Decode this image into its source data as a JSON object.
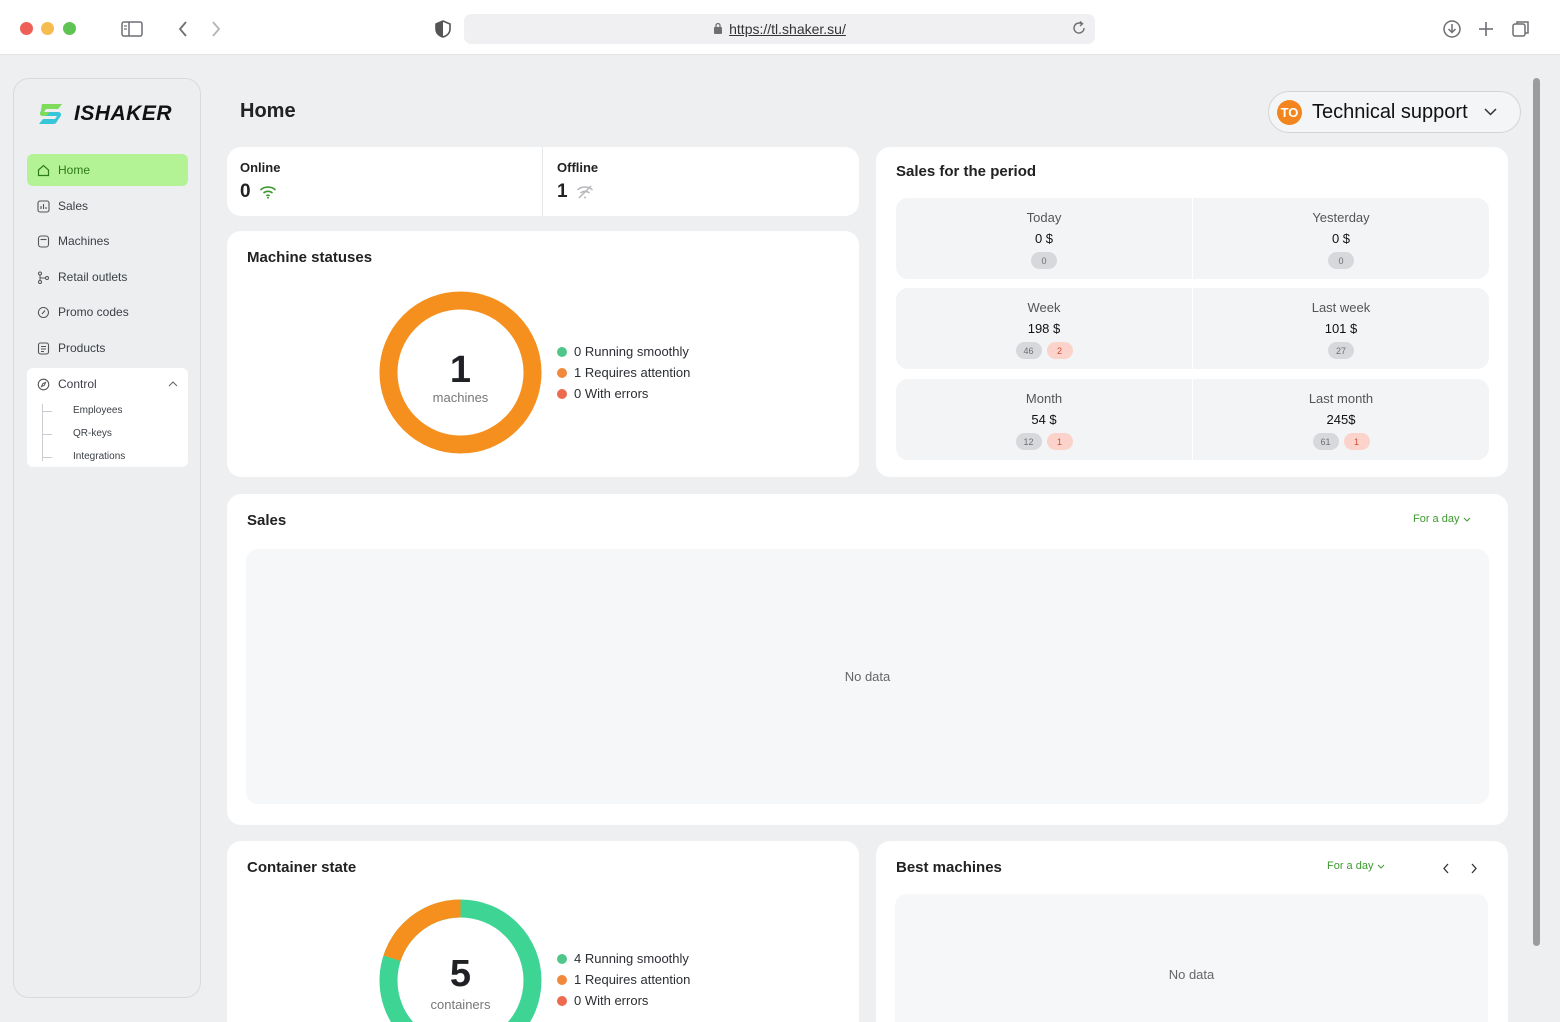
{
  "browser": {
    "url": "https://tl.shaker.su/"
  },
  "brand": {
    "logo_text": "ISHAKER",
    "accent_color": "#b4f296"
  },
  "sidebar": {
    "items": [
      {
        "label": "Home",
        "icon": "home-icon",
        "active": true
      },
      {
        "label": "Sales",
        "icon": "chart-icon",
        "active": false
      },
      {
        "label": "Machines",
        "icon": "machine-icon",
        "active": false
      },
      {
        "label": "Retail outlets",
        "icon": "branch-icon",
        "active": false
      },
      {
        "label": "Promo codes",
        "icon": "tag-icon",
        "active": false
      },
      {
        "label": "Products",
        "icon": "document-icon",
        "active": false
      }
    ],
    "control": {
      "label": "Control",
      "expanded": true,
      "children": [
        "Employees",
        "QR-keys",
        "Integrations"
      ]
    }
  },
  "header": {
    "title": "Home",
    "user": {
      "initials": "TO",
      "name": "Technical support"
    }
  },
  "connectivity": {
    "online": {
      "label": "Online",
      "value": "0"
    },
    "offline": {
      "label": "Offline",
      "value": "1"
    }
  },
  "machine_statuses": {
    "title": "Machine statuses",
    "total": "1",
    "unit": "machines",
    "legend": [
      {
        "text": "0 Running smoothly",
        "color": "#4fc78a"
      },
      {
        "text": "1 Requires attention",
        "color": "#f0893c"
      },
      {
        "text": "0 With errors",
        "color": "#ee6a4f"
      }
    ],
    "ring_color": "#f5901f"
  },
  "sales_period": {
    "title": "Sales for the period",
    "rows": [
      [
        {
          "name": "Today",
          "value": "0 $",
          "chips": [
            {
              "text": "0",
              "type": "gray"
            }
          ]
        },
        {
          "name": "Yesterday",
          "value": "0 $",
          "chips": [
            {
              "text": "0",
              "type": "gray"
            }
          ]
        }
      ],
      [
        {
          "name": "Week",
          "value": "198 $",
          "chips": [
            {
              "text": "46",
              "type": "gray"
            },
            {
              "text": "2",
              "type": "red"
            }
          ]
        },
        {
          "name": "Last week",
          "value": "101 $",
          "chips": [
            {
              "text": "27",
              "type": "gray"
            }
          ]
        }
      ],
      [
        {
          "name": "Month",
          "value": "54 $",
          "chips": [
            {
              "text": "12",
              "type": "gray"
            },
            {
              "text": "1",
              "type": "red"
            }
          ]
        },
        {
          "name": "Last month",
          "value": "245$",
          "chips": [
            {
              "text": "61",
              "type": "gray"
            },
            {
              "text": "1",
              "type": "red"
            }
          ]
        }
      ]
    ]
  },
  "sales": {
    "title": "Sales",
    "period": "For a day",
    "empty": "No data"
  },
  "container_state": {
    "title": "Container state",
    "total": "5",
    "unit": "containers",
    "legend": [
      {
        "text": "4 Running smoothly",
        "color": "#4fc78a"
      },
      {
        "text": "1 Requires attention",
        "color": "#f0893c"
      },
      {
        "text": "0 With errors",
        "color": "#ee6a4f"
      }
    ],
    "segments": [
      {
        "value": 4,
        "color": "#3ed494"
      },
      {
        "value": 1,
        "color": "#f5901f"
      }
    ]
  },
  "best_machines": {
    "title": "Best machines",
    "period": "For a day",
    "empty": "No data"
  }
}
